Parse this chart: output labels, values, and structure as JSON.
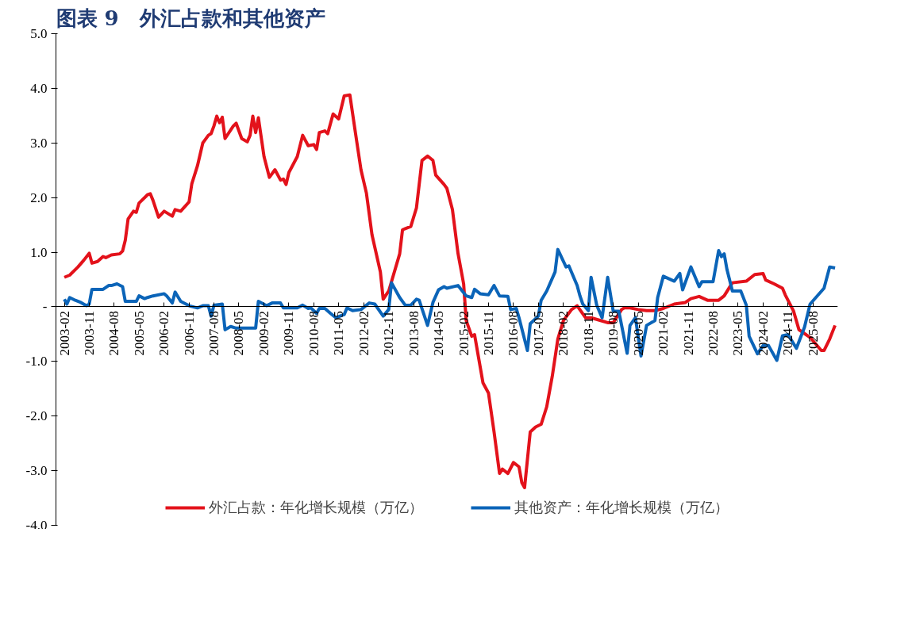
{
  "chart_data": {
    "type": "line",
    "title": "图表 9　外汇占款和其他资产",
    "series": [
      {
        "name": "外汇占款：年化增长规模（万亿）",
        "color": "#e3121b",
        "x": [
          "2003-02",
          "2003-04",
          "2003-07",
          "2003-09",
          "2003-11",
          "2003-12",
          "2004-02",
          "2004-04",
          "2004-05",
          "2004-07",
          "2004-10",
          "2004-11",
          "2004-12",
          "2005-01",
          "2005-03",
          "2005-04",
          "2005-05",
          "2005-08",
          "2005-09",
          "2005-10",
          "2005-12",
          "2006-02",
          "2006-05",
          "2006-06",
          "2006-08",
          "2006-11",
          "2006-12",
          "2007-02",
          "2007-04",
          "2007-06",
          "2007-07",
          "2007-08",
          "2007-09",
          "2007-10",
          "2007-11",
          "2007-12",
          "2008-03",
          "2008-04",
          "2008-06",
          "2008-08",
          "2008-09",
          "2008-10",
          "2008-11",
          "2008-12",
          "2009-02",
          "2009-04",
          "2009-06",
          "2009-08",
          "2009-09",
          "2009-10",
          "2009-11",
          "2010-02",
          "2010-04",
          "2010-06",
          "2010-08",
          "2010-09",
          "2010-10",
          "2010-12",
          "2011-01",
          "2011-02",
          "2011-03",
          "2011-05",
          "2011-07",
          "2011-09",
          "2011-11",
          "2012-01",
          "2012-03",
          "2012-05",
          "2012-08",
          "2012-09",
          "2012-11",
          "2013-03",
          "2013-04",
          "2013-07",
          "2013-09",
          "2013-11",
          "2014-01",
          "2014-03",
          "2014-04",
          "2014-07",
          "2014-08",
          "2014-10",
          "2014-12",
          "2015-02",
          "2015-03",
          "2015-05",
          "2015-06",
          "2015-09",
          "2015-11",
          "2016-01",
          "2016-03",
          "2016-04",
          "2016-06",
          "2016-08",
          "2016-10",
          "2016-11",
          "2016-12",
          "2017-02",
          "2017-04",
          "2017-06",
          "2017-08",
          "2017-10",
          "2017-12",
          "2018-02",
          "2018-05",
          "2018-07",
          "2018-10",
          "2018-12",
          "2019-06",
          "2019-08",
          "2019-11",
          "2019-12",
          "2020-02",
          "2020-05",
          "2020-08",
          "2020-11",
          "2021-02",
          "2021-06",
          "2021-10",
          "2021-12",
          "2022-03",
          "2022-06",
          "2022-10",
          "2022-12",
          "2023-03",
          "2023-08",
          "2023-11",
          "2024-02",
          "2024-03",
          "2024-06",
          "2024-09",
          "2024-10",
          "2025-01",
          "2025-03",
          "2025-07",
          "2025-11",
          "2025-12",
          "2026-02",
          "2026-04"
        ],
        "values": [
          0.54,
          0.58,
          0.73,
          0.85,
          0.98,
          0.8,
          0.83,
          0.92,
          0.9,
          0.95,
          0.97,
          1.02,
          1.22,
          1.61,
          1.75,
          1.73,
          1.9,
          2.05,
          2.07,
          1.95,
          1.64,
          1.75,
          1.66,
          1.78,
          1.75,
          1.92,
          2.25,
          2.58,
          3.0,
          3.14,
          3.17,
          3.31,
          3.49,
          3.37,
          3.47,
          3.08,
          3.31,
          3.36,
          3.08,
          3.02,
          3.14,
          3.49,
          3.19,
          3.46,
          2.75,
          2.37,
          2.51,
          2.32,
          2.34,
          2.24,
          2.46,
          2.75,
          3.14,
          2.95,
          2.97,
          2.88,
          3.19,
          3.22,
          3.17,
          3.36,
          3.53,
          3.44,
          3.86,
          3.88,
          3.19,
          2.51,
          2.08,
          1.32,
          0.64,
          0.14,
          0.29,
          0.97,
          1.41,
          1.47,
          1.81,
          2.68,
          2.76,
          2.68,
          2.41,
          2.24,
          2.17,
          1.78,
          0.98,
          0.42,
          -0.25,
          -0.54,
          -0.51,
          -1.39,
          -1.58,
          -2.29,
          -3.05,
          -2.97,
          -3.05,
          -2.85,
          -2.93,
          -3.22,
          -3.31,
          -2.29,
          -2.2,
          -2.15,
          -1.83,
          -1.27,
          -0.59,
          -0.25,
          -0.05,
          0.02,
          -0.2,
          -0.2,
          -0.29,
          -0.29,
          -0.05,
          -0.02,
          -0.02,
          -0.05,
          -0.07,
          -0.07,
          -0.03,
          0.05,
          0.08,
          0.15,
          0.19,
          0.12,
          0.12,
          0.2,
          0.44,
          0.47,
          0.59,
          0.61,
          0.49,
          0.42,
          0.34,
          0.22,
          -0.08,
          -0.42,
          -0.56,
          -0.8,
          -0.8,
          -0.59,
          -0.34
        ]
      },
      {
        "name": "其他资产：年化增长规模（万亿）",
        "color": "#0b64b8",
        "x": [
          "2003-02",
          "2003-03",
          "2003-04",
          "2003-06",
          "2003-08",
          "2003-10",
          "2003-11",
          "2003-12",
          "2004-04",
          "2004-06",
          "2004-07",
          "2004-09",
          "2004-11",
          "2004-12",
          "2005-04",
          "2005-05",
          "2005-07",
          "2005-08",
          "2005-10",
          "2006-02",
          "2006-03",
          "2006-05",
          "2006-06",
          "2006-08",
          "2006-11",
          "2007-02",
          "2007-04",
          "2007-06",
          "2007-07",
          "2007-08",
          "2007-11",
          "2007-12",
          "2008-02",
          "2008-04",
          "2008-11",
          "2008-12",
          "2009-03",
          "2009-05",
          "2009-08",
          "2009-09",
          "2010-02",
          "2010-04",
          "2010-06",
          "2010-07",
          "2010-09",
          "2010-10",
          "2010-12",
          "2011-02",
          "2011-04",
          "2011-07",
          "2011-08",
          "2011-10",
          "2012-01",
          "2012-04",
          "2012-06",
          "2012-09",
          "2012-11",
          "2012-12",
          "2013-03",
          "2013-05",
          "2013-07",
          "2013-09",
          "2013-10",
          "2014-01",
          "2014-03",
          "2014-05",
          "2014-07",
          "2014-08",
          "2014-12",
          "2015-03",
          "2015-05",
          "2015-06",
          "2015-08",
          "2015-11",
          "2016-01",
          "2016-03",
          "2016-06",
          "2016-07",
          "2016-09",
          "2016-10",
          "2017-01",
          "2017-02",
          "2017-05",
          "2017-06",
          "2017-08",
          "2017-11",
          "2017-12",
          "2018-03",
          "2018-04",
          "2018-05",
          "2018-07",
          "2018-08",
          "2018-09",
          "2018-11",
          "2018-12",
          "2019-02",
          "2019-04",
          "2019-06",
          "2019-08",
          "2019-10",
          "2020-01",
          "2020-02",
          "2020-04",
          "2020-06",
          "2020-08",
          "2020-11",
          "2020-12",
          "2021-02",
          "2021-06",
          "2021-08",
          "2021-09",
          "2021-12",
          "2022-03",
          "2022-04",
          "2022-08",
          "2022-10",
          "2022-11",
          "2022-12",
          "2023-01",
          "2023-03",
          "2023-06",
          "2023-08",
          "2023-09",
          "2023-12",
          "2024-02",
          "2024-04",
          "2024-07",
          "2024-09",
          "2024-11",
          "2025-02",
          "2025-05",
          "2025-07",
          "2025-12",
          "2026-02",
          "2026-04"
        ],
        "values": [
          0.14,
          0.05,
          0.17,
          0.12,
          0.08,
          0.02,
          0.05,
          0.32,
          0.32,
          0.39,
          0.39,
          0.42,
          0.37,
          0.1,
          0.1,
          0.2,
          0.15,
          0.17,
          0.2,
          0.24,
          0.2,
          0.07,
          0.27,
          0.1,
          0.02,
          -0.02,
          0.02,
          0.02,
          -0.17,
          0.03,
          0.05,
          -0.42,
          -0.36,
          -0.39,
          -0.39,
          0.1,
          0.02,
          0.07,
          0.07,
          -0.02,
          -0.02,
          0.03,
          -0.03,
          -0.02,
          -0.12,
          -0.03,
          -0.03,
          -0.12,
          -0.2,
          -0.14,
          -0.02,
          -0.07,
          -0.05,
          0.07,
          0.05,
          -0.17,
          -0.05,
          0.44,
          0.17,
          0.03,
          0.03,
          0.14,
          0.12,
          -0.34,
          0.08,
          0.31,
          0.37,
          0.34,
          0.39,
          0.2,
          0.17,
          0.32,
          0.24,
          0.22,
          0.39,
          0.2,
          0.19,
          -0.05,
          -0.03,
          -0.2,
          -0.8,
          -0.31,
          -0.17,
          0.12,
          0.29,
          0.64,
          1.05,
          0.73,
          0.75,
          0.63,
          0.39,
          0.2,
          0.05,
          -0.07,
          0.54,
          0.03,
          -0.2,
          0.54,
          -0.08,
          -0.08,
          -0.85,
          -0.34,
          -0.2,
          -0.9,
          -0.34,
          -0.25,
          0.17,
          0.56,
          0.47,
          0.61,
          0.31,
          0.73,
          0.37,
          0.46,
          0.46,
          1.03,
          0.92,
          0.97,
          0.68,
          0.29,
          0.29,
          0.03,
          -0.54,
          -0.86,
          -0.71,
          -0.71,
          -0.98,
          -0.53,
          -0.51,
          -0.76,
          -0.37,
          0.05,
          0.34,
          0.73,
          0.71
        ]
      }
    ],
    "xlim": [
      "2002-11",
      "2026-05"
    ],
    "xticks": [
      "2003-02",
      "2003-11",
      "2004-08",
      "2005-05",
      "2006-02",
      "2006-11",
      "2007-08",
      "2008-05",
      "2009-02",
      "2009-11",
      "2010-08",
      "2011-05",
      "2012-02",
      "2012-11",
      "2013-08",
      "2014-05",
      "2015-02",
      "2015-11",
      "2016-08",
      "2017-05",
      "2018-02",
      "2018-11",
      "2019-08",
      "2020-05",
      "2021-02",
      "2021-11",
      "2022-08",
      "2023-05",
      "2024-02",
      "2024-11",
      "2025-08"
    ],
    "ylim": [
      -4,
      5
    ],
    "yticks": [
      {
        "value": -4,
        "label": "-4.0"
      },
      {
        "value": -3,
        "label": "-3.0"
      },
      {
        "value": -2,
        "label": "-2.0"
      },
      {
        "value": -1,
        "label": "-1.0"
      },
      {
        "value": 0,
        "label": "-"
      },
      {
        "value": 1,
        "label": "1.0"
      },
      {
        "value": 2,
        "label": "2.0"
      },
      {
        "value": 3,
        "label": "3.0"
      },
      {
        "value": 4,
        "label": "4.0"
      },
      {
        "value": 5,
        "label": "5.0"
      }
    ],
    "grid": false,
    "legend": "bottom",
    "line_style": "solid"
  }
}
